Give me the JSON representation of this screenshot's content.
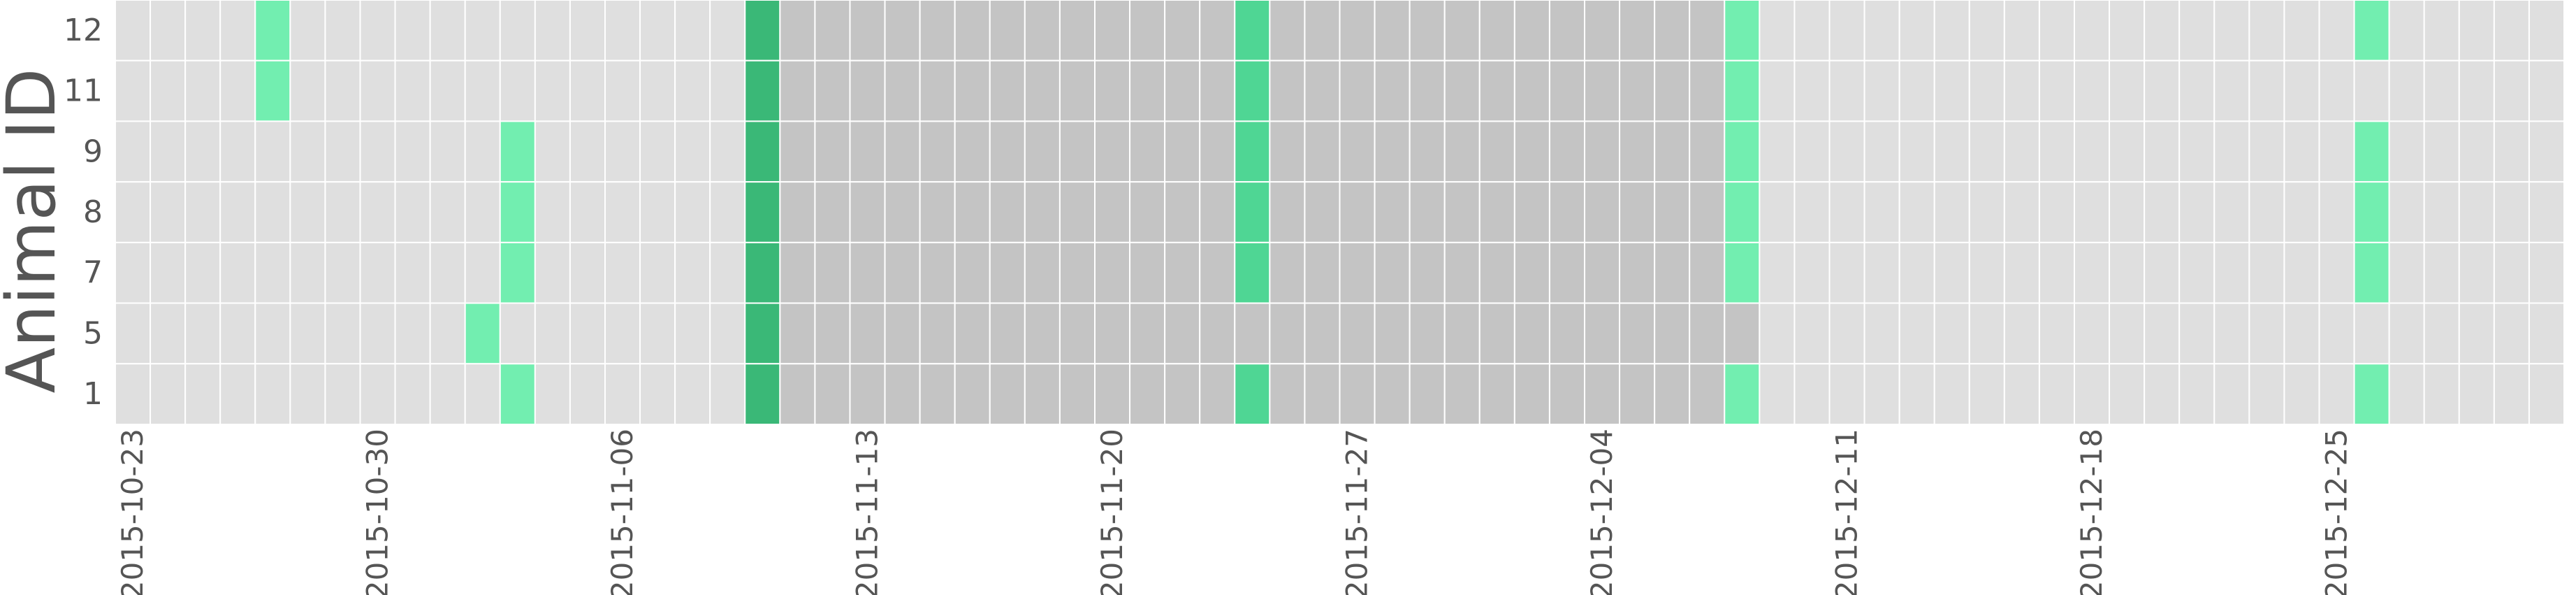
{
  "chart_data": {
    "type": "heatmap",
    "title": "",
    "xlabel": "",
    "ylabel": "Animal ID",
    "rows": [
      "12",
      "11",
      "9",
      "8",
      "7",
      "5",
      "1"
    ],
    "start_date": "2015-10-23",
    "end_date": "2015-12-31",
    "x_tick_labels": [
      "2015-10-23",
      "2015-10-30",
      "2015-11-06",
      "2015-11-13",
      "2015-11-20",
      "2015-11-27",
      "2015-12-04",
      "2015-12-11",
      "2015-12-18",
      "2015-12-25"
    ],
    "shaded_ranges": [
      {
        "start": "2015-11-11",
        "end": "2015-12-08",
        "color": "#c4c4c4"
      }
    ],
    "levels": {
      "light": "#72eeb0",
      "medium": "#4fd694",
      "dark": "#3ab877"
    },
    "cells": [
      {
        "row": "12",
        "date": "2015-10-27",
        "level": "light"
      },
      {
        "row": "11",
        "date": "2015-10-27",
        "level": "light"
      },
      {
        "row": "9",
        "date": "2015-11-03",
        "level": "light"
      },
      {
        "row": "8",
        "date": "2015-11-03",
        "level": "light"
      },
      {
        "row": "7",
        "date": "2015-11-03",
        "level": "light"
      },
      {
        "row": "5",
        "date": "2015-11-02",
        "level": "light"
      },
      {
        "row": "1",
        "date": "2015-11-03",
        "level": "light"
      },
      {
        "row": "12",
        "date": "2015-11-10",
        "level": "dark"
      },
      {
        "row": "11",
        "date": "2015-11-10",
        "level": "dark"
      },
      {
        "row": "9",
        "date": "2015-11-10",
        "level": "dark"
      },
      {
        "row": "8",
        "date": "2015-11-10",
        "level": "dark"
      },
      {
        "row": "7",
        "date": "2015-11-10",
        "level": "dark"
      },
      {
        "row": "5",
        "date": "2015-11-10",
        "level": "dark"
      },
      {
        "row": "1",
        "date": "2015-11-10",
        "level": "dark"
      },
      {
        "row": "12",
        "date": "2015-11-24",
        "level": "medium"
      },
      {
        "row": "11",
        "date": "2015-11-24",
        "level": "medium"
      },
      {
        "row": "9",
        "date": "2015-11-24",
        "level": "medium"
      },
      {
        "row": "8",
        "date": "2015-11-24",
        "level": "medium"
      },
      {
        "row": "7",
        "date": "2015-11-24",
        "level": "medium"
      },
      {
        "row": "1",
        "date": "2015-11-24",
        "level": "medium"
      },
      {
        "row": "12",
        "date": "2015-12-08",
        "level": "light"
      },
      {
        "row": "11",
        "date": "2015-12-08",
        "level": "light"
      },
      {
        "row": "9",
        "date": "2015-12-08",
        "level": "light"
      },
      {
        "row": "8",
        "date": "2015-12-08",
        "level": "light"
      },
      {
        "row": "7",
        "date": "2015-12-08",
        "level": "light"
      },
      {
        "row": "1",
        "date": "2015-12-08",
        "level": "light"
      },
      {
        "row": "12",
        "date": "2015-12-26",
        "level": "light"
      },
      {
        "row": "9",
        "date": "2015-12-26",
        "level": "light"
      },
      {
        "row": "8",
        "date": "2015-12-26",
        "level": "light"
      },
      {
        "row": "7",
        "date": "2015-12-26",
        "level": "light"
      },
      {
        "row": "1",
        "date": "2015-12-26",
        "level": "light"
      }
    ],
    "colors": {
      "background_cell": "#dfdfdf",
      "grid_line": "#ffffff",
      "text": "#555555"
    },
    "grid": true,
    "legend": "none"
  }
}
